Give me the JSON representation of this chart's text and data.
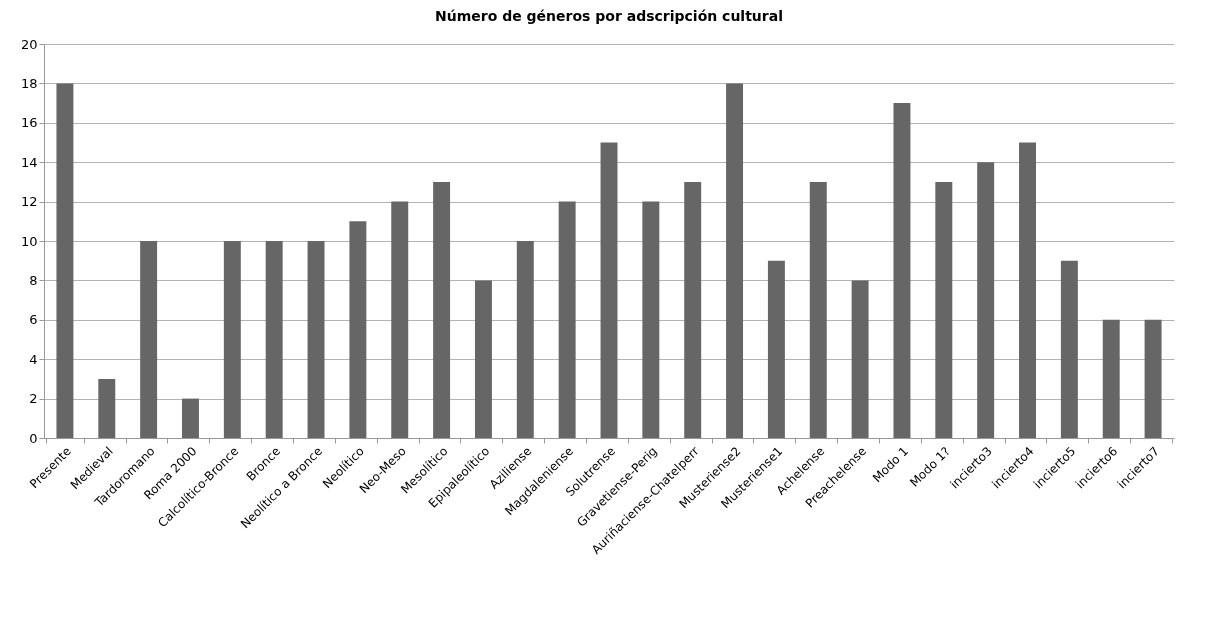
{
  "chart_data": {
    "type": "bar",
    "title": "Número de géneros por adscripción cultural",
    "categories": [
      "Presente",
      "Medieval",
      "Tardoromano",
      "Roma 2000",
      "Calcolítico-Bronce",
      "Bronce",
      "Neolítico a Bronce",
      "Neolítico",
      "Neo-Meso",
      "Mesolítico",
      "Epipaleolítico",
      "Aziliense",
      "Magdaleniense",
      "Solutrense",
      "Gravetiense-Perig",
      "Auriñaciense-Chatelperr",
      "Musteriense2",
      "Musteriense1",
      "Achelense",
      "Preachelense",
      "Modo 1",
      "Modo 1?",
      "incierto3",
      "incierto4",
      "incierto5",
      "incierto6",
      "incierto7"
    ],
    "values": [
      18,
      3,
      10,
      2,
      10,
      10,
      10,
      11,
      12,
      13,
      8,
      10,
      12,
      15,
      12,
      13,
      18,
      9,
      13,
      8,
      17,
      13,
      14,
      15,
      9,
      6,
      6
    ],
    "color": "#666666",
    "ylim": [
      0,
      20
    ],
    "yticks": [
      0,
      2,
      4,
      6,
      8,
      10,
      12,
      14,
      16,
      18,
      20
    ],
    "grid": "y"
  }
}
